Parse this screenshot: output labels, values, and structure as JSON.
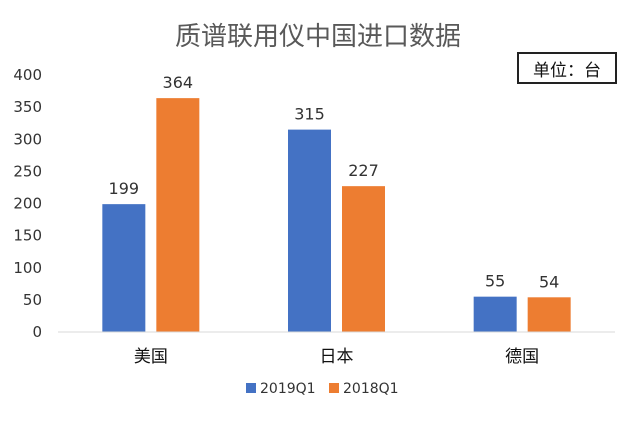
{
  "chart_data": {
    "type": "bar",
    "title": "质谱联用仪中国进口数据",
    "unit_label": "单位：台",
    "categories": [
      "美国",
      "日本",
      "德国"
    ],
    "series": [
      {
        "name": "2019Q1",
        "values": [
          199,
          315,
          55
        ],
        "color": "#4472c4"
      },
      {
        "name": "2018Q1",
        "values": [
          364,
          227,
          54
        ],
        "color": "#ed7d31"
      }
    ],
    "ylim": [
      0,
      400
    ],
    "yticks": [
      0,
      50,
      100,
      150,
      200,
      250,
      300,
      350,
      400
    ],
    "grid": false,
    "legend_position": "bottom"
  }
}
